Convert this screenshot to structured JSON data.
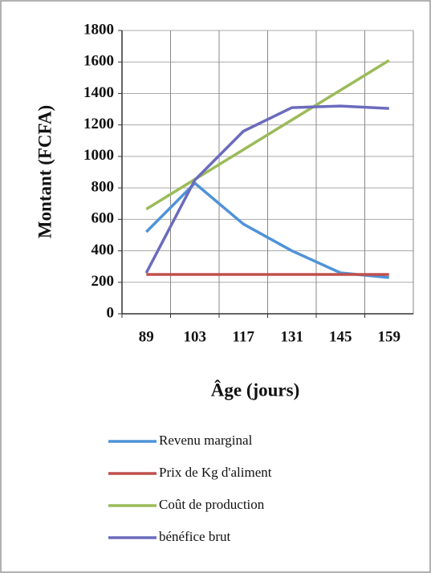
{
  "chart_data": {
    "type": "line",
    "categories": [
      "89",
      "103",
      "117",
      "131",
      "145",
      "159"
    ],
    "series": [
      {
        "name": "Revenu marginal",
        "color": "#4f93d8",
        "values": [
          520,
          830,
          570,
          400,
          260,
          230
        ]
      },
      {
        "name": "Prix de Kg d'aliment",
        "color": "#c0504d",
        "values": [
          250,
          250,
          250,
          250,
          250,
          250
        ]
      },
      {
        "name": "Coût de production",
        "color": "#9bbb59",
        "values": [
          665,
          854,
          1043,
          1232,
          1421,
          1610
        ]
      },
      {
        "name": "bénéfice brut",
        "color": "#6b6bbd",
        "values": [
          260,
          850,
          1160,
          1310,
          1320,
          1305
        ]
      }
    ],
    "xlabel": "Âge (jours)",
    "ylabel": "Montant (FCFA)",
    "ylim": [
      0,
      1800
    ],
    "yticks": [
      0,
      200,
      400,
      600,
      800,
      1000,
      1200,
      1400,
      1600,
      1800
    ],
    "grid": true,
    "legend": "bottom"
  }
}
